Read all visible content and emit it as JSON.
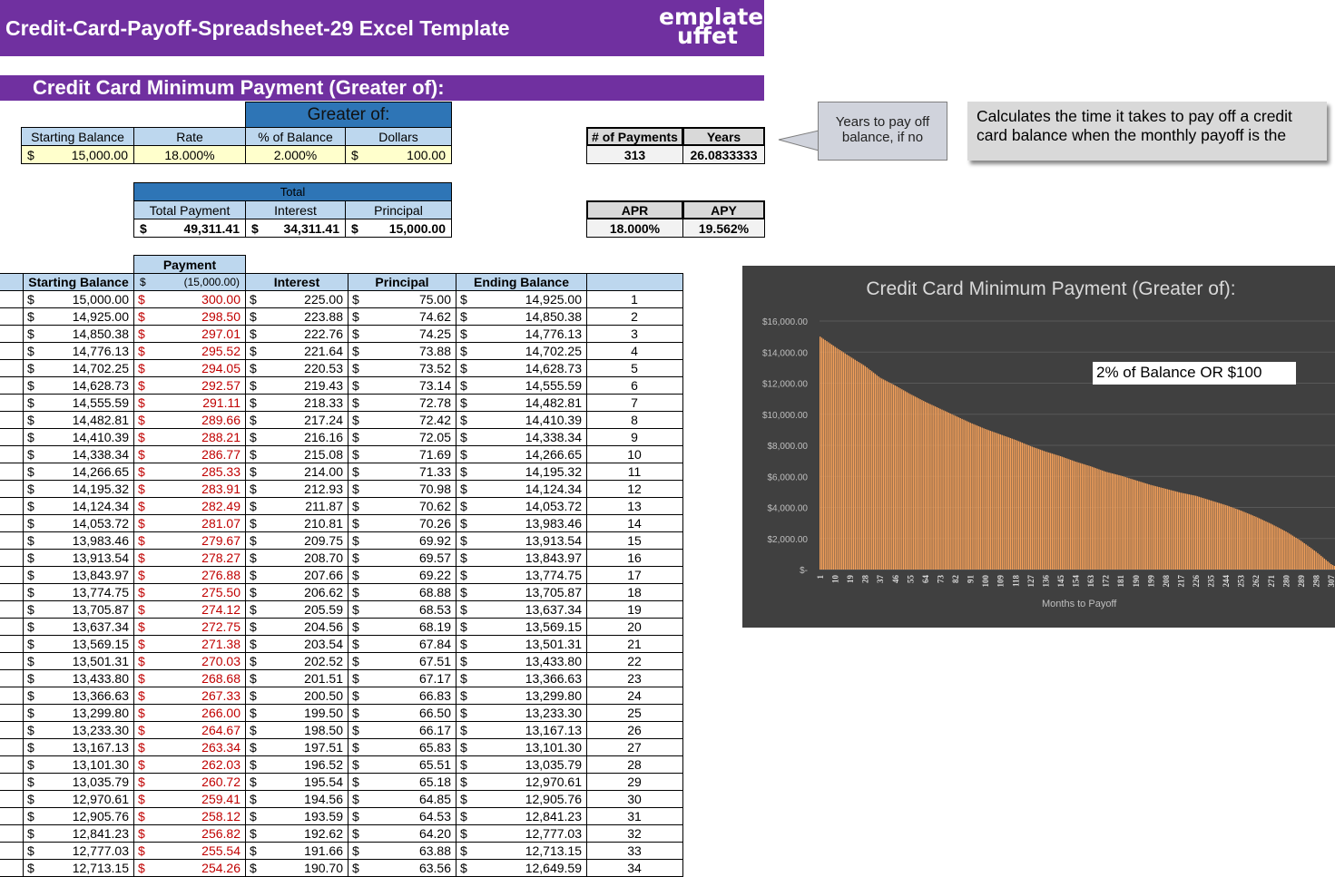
{
  "header": {
    "title": "Credit-Card-Payoff-Spreadsheet-29 Excel Template",
    "logo_line1": "emplate",
    "logo_line2": "uffet",
    "logo_text": "Template Buffet"
  },
  "section_title": "Credit Card Minimum Payment (Greater of):",
  "inputs": {
    "greater_of_label": "Greater of:",
    "headers": [
      "Starting Balance",
      "Rate",
      "% of Balance",
      "Dollars"
    ],
    "currency": "$",
    "starting_balance": "15,000.00",
    "rate": "18.000%",
    "pct_of_balance": "2.000%",
    "dollars": "100.00"
  },
  "totals": {
    "label": "Total",
    "headers": [
      "Total Payment",
      "Interest",
      "Principal"
    ],
    "currency": "$",
    "total_payment": "49,311.41",
    "interest": "34,311.41",
    "principal": "15,000.00"
  },
  "summary": {
    "num_payments_label": "# of Payments",
    "years_label": "Years",
    "num_payments": "313",
    "years": "26.0833333",
    "apr_label": "APR",
    "apy_label": "APY",
    "apr": "18.000%",
    "apy": "19.562%"
  },
  "callouts": {
    "years_note": "Years to pay off balance, if no",
    "description": "Calculates the time it takes to pay off a credit card balance when  the monthly payoff is the"
  },
  "schedule": {
    "payment_label": "Payment",
    "headers": [
      "Starting Balance",
      "Interest",
      "Principal",
      "Ending Balance"
    ],
    "currency": "$",
    "payment_total": "(15,000.00)",
    "rows": [
      [
        "15,000.00",
        "300.00",
        "225.00",
        "75.00",
        "14,925.00",
        "1"
      ],
      [
        "14,925.00",
        "298.50",
        "223.88",
        "74.62",
        "14,850.38",
        "2"
      ],
      [
        "14,850.38",
        "297.01",
        "222.76",
        "74.25",
        "14,776.13",
        "3"
      ],
      [
        "14,776.13",
        "295.52",
        "221.64",
        "73.88",
        "14,702.25",
        "4"
      ],
      [
        "14,702.25",
        "294.05",
        "220.53",
        "73.52",
        "14,628.73",
        "5"
      ],
      [
        "14,628.73",
        "292.57",
        "219.43",
        "73.14",
        "14,555.59",
        "6"
      ],
      [
        "14,555.59",
        "291.11",
        "218.33",
        "72.78",
        "14,482.81",
        "7"
      ],
      [
        "14,482.81",
        "289.66",
        "217.24",
        "72.42",
        "14,410.39",
        "8"
      ],
      [
        "14,410.39",
        "288.21",
        "216.16",
        "72.05",
        "14,338.34",
        "9"
      ],
      [
        "14,338.34",
        "286.77",
        "215.08",
        "71.69",
        "14,266.65",
        "10"
      ],
      [
        "14,266.65",
        "285.33",
        "214.00",
        "71.33",
        "14,195.32",
        "11"
      ],
      [
        "14,195.32",
        "283.91",
        "212.93",
        "70.98",
        "14,124.34",
        "12"
      ],
      [
        "14,124.34",
        "282.49",
        "211.87",
        "70.62",
        "14,053.72",
        "13"
      ],
      [
        "14,053.72",
        "281.07",
        "210.81",
        "70.26",
        "13,983.46",
        "14"
      ],
      [
        "13,983.46",
        "279.67",
        "209.75",
        "69.92",
        "13,913.54",
        "15"
      ],
      [
        "13,913.54",
        "278.27",
        "208.70",
        "69.57",
        "13,843.97",
        "16"
      ],
      [
        "13,843.97",
        "276.88",
        "207.66",
        "69.22",
        "13,774.75",
        "17"
      ],
      [
        "13,774.75",
        "275.50",
        "206.62",
        "68.88",
        "13,705.87",
        "18"
      ],
      [
        "13,705.87",
        "274.12",
        "205.59",
        "68.53",
        "13,637.34",
        "19"
      ],
      [
        "13,637.34",
        "272.75",
        "204.56",
        "68.19",
        "13,569.15",
        "20"
      ],
      [
        "13,569.15",
        "271.38",
        "203.54",
        "67.84",
        "13,501.31",
        "21"
      ],
      [
        "13,501.31",
        "270.03",
        "202.52",
        "67.51",
        "13,433.80",
        "22"
      ],
      [
        "13,433.80",
        "268.68",
        "201.51",
        "67.17",
        "13,366.63",
        "23"
      ],
      [
        "13,366.63",
        "267.33",
        "200.50",
        "66.83",
        "13,299.80",
        "24"
      ],
      [
        "13,299.80",
        "266.00",
        "199.50",
        "66.50",
        "13,233.30",
        "25"
      ],
      [
        "13,233.30",
        "264.67",
        "198.50",
        "66.17",
        "13,167.13",
        "26"
      ],
      [
        "13,167.13",
        "263.34",
        "197.51",
        "65.83",
        "13,101.30",
        "27"
      ],
      [
        "13,101.30",
        "262.03",
        "196.52",
        "65.51",
        "13,035.79",
        "28"
      ],
      [
        "13,035.79",
        "260.72",
        "195.54",
        "65.18",
        "12,970.61",
        "29"
      ],
      [
        "12,970.61",
        "259.41",
        "194.56",
        "64.85",
        "12,905.76",
        "30"
      ],
      [
        "12,905.76",
        "258.12",
        "193.59",
        "64.53",
        "12,841.23",
        "31"
      ],
      [
        "12,841.23",
        "256.82",
        "192.62",
        "64.20",
        "12,777.03",
        "32"
      ],
      [
        "12,777.03",
        "255.54",
        "191.66",
        "63.88",
        "12,713.15",
        "33"
      ],
      [
        "12,713.15",
        "254.26",
        "190.70",
        "63.56",
        "12,649.59",
        "34"
      ]
    ]
  },
  "chart_data": {
    "type": "bar",
    "title": "Credit Card Minimum Payment (Greater of):",
    "xlabel": "Months to Payoff",
    "ylabel": "",
    "annotation": "2% of Balance OR $100",
    "ylim": [
      0,
      16000
    ],
    "yticks": [
      "$-",
      "$2,000.00",
      "$4,000.00",
      "$6,000.00",
      "$8,000.00",
      "$10,000.00",
      "$12,000.00",
      "$14,000.00",
      "$16,000.00"
    ],
    "xticks": [
      "1",
      "10",
      "19",
      "28",
      "37",
      "46",
      "55",
      "64",
      "73",
      "82",
      "91",
      "100",
      "109",
      "118",
      "127",
      "136",
      "145",
      "154",
      "163",
      "172",
      "181",
      "190",
      "199",
      "208",
      "217",
      "226",
      "235",
      "244",
      "253",
      "262",
      "271",
      "280",
      "289",
      "298",
      "307"
    ],
    "x": [
      1,
      10,
      19,
      28,
      37,
      46,
      55,
      64,
      73,
      82,
      91,
      100,
      109,
      118,
      127,
      136,
      145,
      154,
      163,
      172,
      181,
      190,
      199,
      208,
      217,
      226,
      235,
      244,
      253,
      262,
      271,
      280,
      289,
      298,
      307,
      313
    ],
    "values": [
      15000,
      14338,
      13706,
      13100,
      12350,
      11850,
      11300,
      10800,
      10350,
      9900,
      9450,
      9050,
      8700,
      8350,
      7950,
      7600,
      7300,
      6950,
      6650,
      6300,
      6050,
      5750,
      5450,
      5200,
      4950,
      4750,
      4450,
      4150,
      3800,
      3400,
      2950,
      2450,
      1850,
      1150,
      350,
      0
    ],
    "colors": {
      "bar": "#f4a05a",
      "background": "#404040"
    }
  }
}
